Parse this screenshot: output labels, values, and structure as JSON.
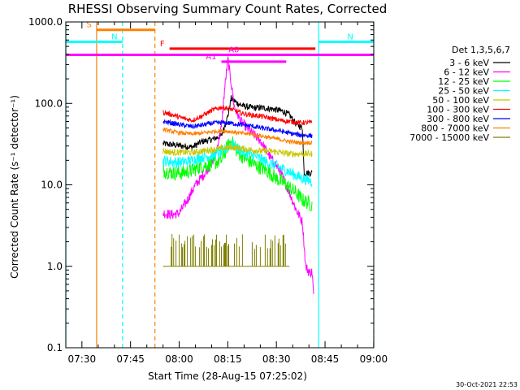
{
  "chart_data": {
    "type": "line",
    "title": "RHESSI Observing Summary Count Rates, Corrected",
    "xlabel": "Start Time (28-Aug-15 07:25:02)",
    "ylabel": "Corrected Count Rate (s⁻¹ detector⁻¹)",
    "yscale": "log",
    "ylim": [
      0.1,
      1000.0
    ],
    "xlim_minutes": [
      0,
      95
    ],
    "x_unit": "minutes after 07:25:02",
    "x_ticks": [
      {
        "label": "07:30",
        "t": 4.97
      },
      {
        "label": "07:45",
        "t": 19.97
      },
      {
        "label": "08:00",
        "t": 34.97
      },
      {
        "label": "08:15",
        "t": 49.97
      },
      {
        "label": "08:30",
        "t": 64.97
      },
      {
        "label": "08:45",
        "t": 79.97
      },
      {
        "label": "09:00",
        "t": 94.97
      }
    ],
    "y_ticks": [
      {
        "label": "0.1",
        "v": 0.1
      },
      {
        "label": "1.0",
        "v": 1.0
      },
      {
        "label": "10.0",
        "v": 10.0
      },
      {
        "label": "100.0",
        "v": 100.0
      },
      {
        "label": "1000.0",
        "v": 1000.0
      }
    ],
    "legend_title": "Det 1,3,5,6,7",
    "legend_position": "right",
    "series": [
      {
        "name": "3 - 6 keV",
        "color": "#000000",
        "t": [
          30,
          33,
          36,
          39,
          42,
          45,
          48,
          50,
          51,
          53,
          55,
          58,
          61,
          64,
          67,
          69,
          71,
          73,
          73.5,
          76
        ],
        "v": [
          32,
          31,
          30,
          29,
          34,
          36,
          40,
          70,
          115,
          100,
          92,
          88,
          88,
          85,
          80,
          72,
          56,
          50,
          14,
          14
        ]
      },
      {
        "name": "6 - 12 keV",
        "color": "#ff00ff",
        "t": [
          30,
          33,
          35,
          37,
          40,
          43,
          46,
          48,
          49,
          50,
          51,
          52,
          54,
          57,
          60,
          63,
          66,
          69,
          71,
          73,
          74,
          75,
          76,
          76.5
        ],
        "v": [
          4.5,
          4.3,
          4.5,
          6,
          10,
          14,
          22,
          50,
          150,
          350,
          180,
          90,
          60,
          45,
          35,
          22,
          15,
          8,
          5,
          3.5,
          1.0,
          0.85,
          0.85,
          0.4
        ]
      },
      {
        "name": "12 - 25 keV",
        "color": "#00ff00",
        "t": [
          30,
          33,
          36,
          39,
          42,
          45,
          48,
          50,
          51,
          53,
          56,
          59,
          62,
          65,
          68,
          71,
          73,
          75,
          76
        ],
        "v": [
          15,
          14,
          14,
          15,
          17,
          18,
          20,
          30,
          35,
          25,
          20,
          17,
          15,
          12,
          10,
          8,
          6.5,
          6,
          5.5
        ]
      },
      {
        "name": "25 - 50 keV",
        "color": "#00ffff",
        "t": [
          30,
          33,
          36,
          39,
          42,
          45,
          48,
          50,
          51,
          53,
          56,
          59,
          62,
          65,
          68,
          71,
          73,
          76
        ],
        "v": [
          20,
          19,
          19,
          20,
          22,
          23,
          25,
          29,
          32,
          28,
          24,
          22,
          19,
          17,
          15,
          13,
          12,
          11
        ]
      },
      {
        "name": "50 - 100 keV",
        "color": "#c8c800",
        "t": [
          30,
          33,
          36,
          39,
          42,
          45,
          48,
          51,
          54,
          57,
          60,
          63,
          66,
          69,
          72,
          76
        ],
        "v": [
          26,
          25,
          25,
          25,
          26,
          27,
          28,
          29,
          28,
          27,
          26,
          26,
          25,
          24,
          24,
          24
        ]
      },
      {
        "name": "100 - 300 keV",
        "color": "#ff0000",
        "t": [
          30,
          33,
          36,
          39,
          42,
          45,
          48,
          51,
          54,
          57,
          60,
          63,
          66,
          69,
          72,
          76
        ],
        "v": [
          78,
          72,
          66,
          62,
          70,
          82,
          90,
          85,
          76,
          72,
          70,
          66,
          62,
          60,
          58,
          58
        ]
      },
      {
        "name": "300 - 800 keV",
        "color": "#0000ff",
        "t": [
          30,
          33,
          36,
          39,
          42,
          45,
          48,
          51,
          54,
          57,
          60,
          63,
          66,
          69,
          72,
          76
        ],
        "v": [
          60,
          57,
          54,
          52,
          54,
          57,
          58,
          57,
          55,
          53,
          50,
          48,
          46,
          43,
          41,
          40
        ]
      },
      {
        "name": "800 - 7000 keV",
        "color": "#ff8000",
        "t": [
          30,
          33,
          36,
          39,
          42,
          45,
          48,
          51,
          54,
          57,
          60,
          63,
          66,
          69,
          72,
          76
        ],
        "v": [
          48,
          45,
          43,
          42,
          43,
          45,
          46,
          45,
          43,
          42,
          40,
          38,
          36,
          34,
          33,
          33
        ]
      },
      {
        "name": "7000 - 15000 keV",
        "color": "#808000",
        "t": [
          30,
          33,
          36,
          39,
          42,
          45,
          48,
          51,
          54,
          57,
          60,
          63,
          66,
          69
        ],
        "v": [
          1.0,
          1.0,
          1.0,
          1.0,
          1.0,
          1.0,
          1.0,
          1.0,
          1.0,
          1.0,
          1.0,
          1.0,
          1.0,
          1.0
        ]
      }
    ],
    "markers": [
      {
        "label": "S",
        "color": "#ff8000",
        "v": 800,
        "t0": 9.5,
        "t1": 27.5
      },
      {
        "label": "N",
        "color": "#00ffff",
        "v": 570,
        "t0": 0,
        "t1": 17.5
      },
      {
        "label": "N",
        "color": "#00ffff",
        "v": 570,
        "t0": 78,
        "t1": 95
      },
      {
        "label": "F",
        "color": "#ff0000",
        "v": 470,
        "t0": 32,
        "t1": 77
      },
      {
        "label": "",
        "color": "#ff00ff",
        "v": 395,
        "t0": 0,
        "t1": 95
      },
      {
        "label": "A0",
        "color": "#ff00ff",
        "v": 395,
        "t0": 54,
        "t1": 60
      },
      {
        "label": "A1",
        "color": "#ff00ff",
        "v": 325,
        "t0": 48,
        "t1": 68
      }
    ],
    "vertical_lines": [
      {
        "t": 0,
        "color": "#00ffff",
        "style": "solid"
      },
      {
        "t": 9.5,
        "color": "#ff8000",
        "style": "solid"
      },
      {
        "t": 17.5,
        "color": "#00ffff",
        "style": "dashed"
      },
      {
        "t": 27.5,
        "color": "#ff8000",
        "style": "dashed"
      },
      {
        "t": 78,
        "color": "#00ffff",
        "style": "solid"
      },
      {
        "t": 95,
        "color": "#00ffff",
        "style": "dashed"
      }
    ],
    "footer": "30-Oct-2021 22:53"
  }
}
